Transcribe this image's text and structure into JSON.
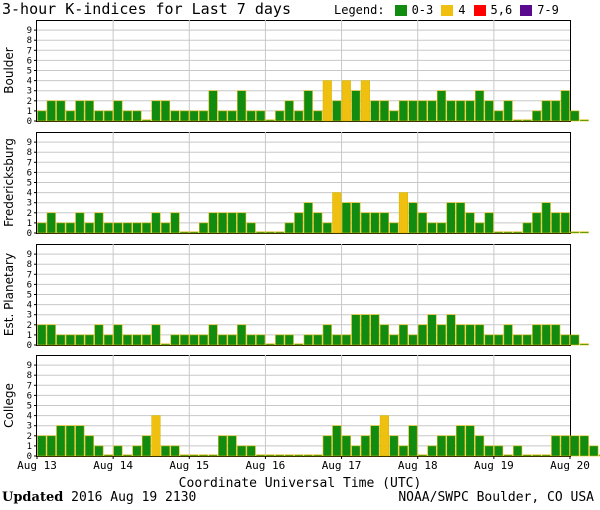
{
  "title": "3-hour K-indices for Last 7 days",
  "legend": {
    "label": "Legend:",
    "items": [
      {
        "label": "0-3",
        "color": "#118c11"
      },
      {
        "label": "4",
        "color": "#f0c010"
      },
      {
        "label": "5,6",
        "color": "#ff0000"
      },
      {
        "label": "7-9",
        "color": "#5a0a8c"
      }
    ]
  },
  "footer": {
    "updated_label": "Updated",
    "updated_value": "2016 Aug 19 2130",
    "source": "NOAA/SWPC Boulder, CO USA"
  },
  "chart_data": {
    "type": "bar",
    "xlabel": "Coordinate Universal Time (UTC)",
    "x_ticks": [
      "Aug 13",
      "Aug 14",
      "Aug 15",
      "Aug 16",
      "Aug 17",
      "Aug 18",
      "Aug 19",
      "Aug 20"
    ],
    "ylim": [
      0,
      9
    ],
    "y_ticks": [
      0,
      1,
      2,
      3,
      4,
      5,
      6,
      7,
      8,
      9
    ],
    "color_scale": {
      "0-3": "#118c11",
      "4": "#f0c010",
      "5,6": "#ff0000",
      "7-9": "#5a0a8c"
    },
    "panels": [
      {
        "name": "Boulder",
        "values": [
          1,
          2,
          2,
          1,
          2,
          2,
          1,
          1,
          2,
          1,
          1,
          0,
          2,
          2,
          1,
          1,
          1,
          1,
          3,
          1,
          1,
          3,
          1,
          1,
          0,
          1,
          2,
          1,
          3,
          1,
          4,
          2,
          4,
          3,
          4,
          2,
          2,
          1,
          2,
          2,
          2,
          2,
          3,
          2,
          2,
          2,
          3,
          2,
          1,
          2,
          0,
          0,
          1,
          2,
          2,
          3,
          1,
          0
        ]
      },
      {
        "name": "Fredericksburg",
        "values": [
          1,
          2,
          1,
          1,
          2,
          1,
          2,
          1,
          1,
          1,
          1,
          1,
          2,
          1,
          2,
          0,
          0,
          1,
          2,
          2,
          2,
          2,
          1,
          0,
          0,
          0,
          1,
          2,
          3,
          2,
          1,
          4,
          3,
          3,
          2,
          2,
          2,
          1,
          4,
          3,
          2,
          1,
          1,
          3,
          3,
          2,
          1,
          2,
          0,
          0,
          0,
          1,
          2,
          3,
          2,
          2,
          0,
          0
        ]
      },
      {
        "name": "Est. Planetary",
        "values": [
          2,
          2,
          1,
          1,
          1,
          1,
          2,
          1,
          2,
          1,
          1,
          1,
          2,
          0,
          1,
          1,
          1,
          1,
          2,
          1,
          1,
          2,
          1,
          1,
          0,
          1,
          1,
          0,
          1,
          1,
          2,
          1,
          1,
          3,
          3,
          3,
          2,
          1,
          2,
          1,
          2,
          3,
          2,
          3,
          2,
          2,
          2,
          1,
          1,
          2,
          1,
          1,
          2,
          2,
          2,
          1,
          1,
          0
        ]
      },
      {
        "name": "College",
        "values": [
          2,
          2,
          3,
          3,
          3,
          2,
          1,
          0,
          1,
          0,
          1,
          2,
          4,
          1,
          1,
          0,
          0,
          0,
          0,
          2,
          2,
          1,
          1,
          0,
          0,
          0,
          0,
          0,
          0,
          0,
          2,
          3,
          2,
          1,
          2,
          3,
          4,
          2,
          1,
          3,
          0,
          1,
          2,
          2,
          3,
          3,
          2,
          1,
          1,
          0,
          1,
          0,
          0,
          0,
          2,
          2,
          2,
          2,
          1,
          0
        ]
      }
    ]
  }
}
